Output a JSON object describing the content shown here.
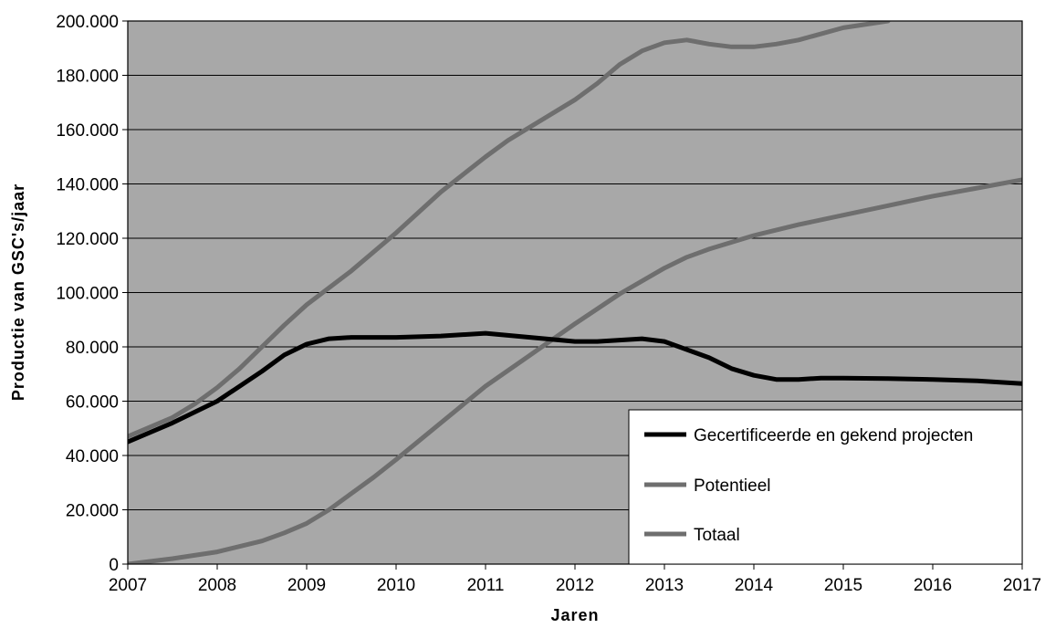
{
  "chart_data": {
    "type": "line",
    "xlabel": "Jaren",
    "ylabel": "Productie van GSC's/jaar",
    "xlim": [
      2007,
      2017
    ],
    "ylim": [
      0,
      200000
    ],
    "x_ticks": [
      2007,
      2008,
      2009,
      2010,
      2011,
      2012,
      2013,
      2014,
      2015,
      2016,
      2017
    ],
    "x_tick_labels": [
      "2007",
      "2008",
      "2009",
      "2010",
      "2011",
      "2012",
      "2013",
      "2014",
      "2015",
      "2016",
      "2017"
    ],
    "y_ticks": [
      0,
      20000,
      40000,
      60000,
      80000,
      100000,
      120000,
      140000,
      160000,
      180000,
      200000
    ],
    "y_tick_labels": [
      "0",
      "20.000",
      "40.000",
      "60.000",
      "80.000",
      "100.000",
      "120.000",
      "140.000",
      "160.000",
      "180.000",
      "200.000"
    ],
    "grid": true,
    "legend_position": "bottom-right",
    "plot_background": "#a8a8a8",
    "series": [
      {
        "name": "Gecertificeerde en gekend projecten",
        "color": "#000000",
        "x": [
          2007,
          2007.5,
          2007.75,
          2008,
          2008.5,
          2008.75,
          2009,
          2009.25,
          2009.5,
          2010,
          2010.5,
          2011,
          2011.5,
          2012,
          2012.25,
          2012.5,
          2012.75,
          2013,
          2013.25,
          2013.5,
          2013.75,
          2014,
          2014.25,
          2014.5,
          2014.75,
          2015,
          2015.5,
          2016,
          2016.5,
          2017
        ],
        "y": [
          45000,
          52000,
          56000,
          60000,
          71000,
          77000,
          81000,
          83000,
          83500,
          83500,
          84000,
          85000,
          83500,
          82000,
          82000,
          82500,
          83000,
          82000,
          79000,
          76000,
          72000,
          69500,
          68000,
          68000,
          68500,
          68500,
          68300,
          68000,
          67500,
          66500
        ]
      },
      {
        "name": "Potentieel",
        "color": "#6e6e6e",
        "x": [
          2007,
          2007.5,
          2008,
          2008.5,
          2008.75,
          2009,
          2009.25,
          2009.5,
          2009.75,
          2010,
          2010.5,
          2011,
          2011.5,
          2012,
          2012.5,
          2013,
          2013.25,
          2013.5,
          2014,
          2014.5,
          2015,
          2015.5,
          2016,
          2016.5,
          2017
        ],
        "y": [
          0,
          2000,
          4500,
          8500,
          11500,
          15000,
          20000,
          26000,
          32000,
          38500,
          52000,
          65500,
          77000,
          88500,
          99500,
          109000,
          113000,
          116000,
          121000,
          125000,
          128500,
          132000,
          135500,
          138500,
          141500
        ]
      },
      {
        "name": "Totaal",
        "color": "#6e6e6e",
        "x": [
          2007,
          2007.5,
          2007.75,
          2008,
          2008.25,
          2008.5,
          2008.75,
          2009,
          2009.5,
          2010,
          2010.5,
          2011,
          2011.25,
          2011.5,
          2012,
          2012.25,
          2012.5,
          2012.75,
          2013,
          2013.25,
          2013.5,
          2013.75,
          2014,
          2014.25,
          2014.5,
          2015,
          2015.5
        ],
        "y": [
          47000,
          54000,
          59000,
          65000,
          72000,
          80000,
          88000,
          95500,
          108000,
          122000,
          137000,
          150000,
          156000,
          161000,
          171000,
          177000,
          184000,
          189000,
          192000,
          193000,
          191500,
          190500,
          190500,
          191500,
          193000,
          197500,
          200000
        ]
      }
    ]
  }
}
